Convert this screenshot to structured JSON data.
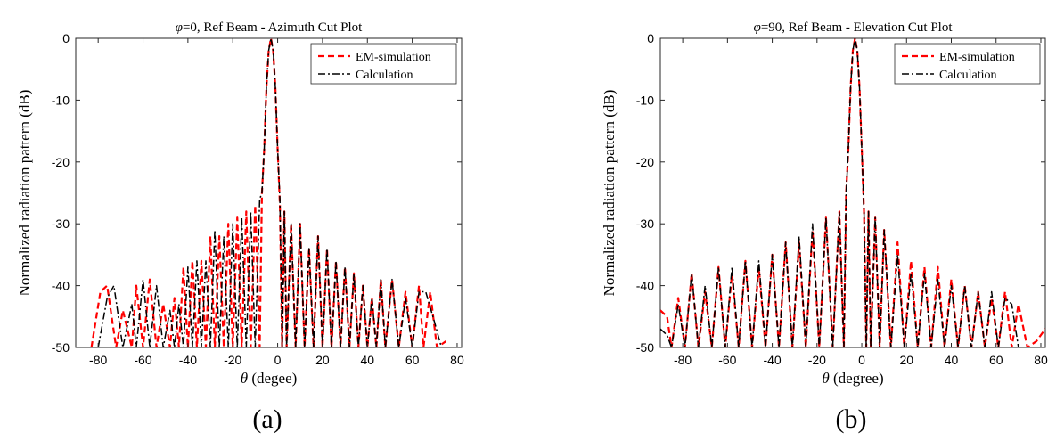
{
  "chart_data": [
    {
      "type": "line",
      "panel": "a",
      "title_symbol": "φ",
      "title_text": "=0, Ref Beam - Azimuth Cut Plot",
      "xlabel_symbol": "θ",
      "xlabel_text": " (degee)",
      "ylabel": "Normalized radiation pattern (dB)",
      "caption": "(a)",
      "xlim": [
        -90,
        82
      ],
      "ylim": [
        -50,
        0
      ],
      "xticks": [
        -80,
        -60,
        -40,
        -20,
        0,
        20,
        40,
        60,
        80
      ],
      "yticks": [
        0,
        -10,
        -20,
        -30,
        -40,
        -50
      ],
      "xtick_labels": [
        "-80",
        "-60",
        "-40",
        "-20",
        "0",
        "20",
        "40",
        "60",
        "80"
      ],
      "ytick_labels": [
        "0",
        "-10",
        "-20",
        "-30",
        "-40",
        "-50"
      ],
      "legend": [
        "EM-simulation",
        "Calculation"
      ],
      "series": [
        {
          "name": "EM-simulation",
          "color": "#ff0000",
          "style": "dashed",
          "x": [
            -83,
            -79,
            -76,
            -72,
            -69,
            -65,
            -63,
            -60,
            -57,
            -54,
            -51,
            -48,
            -46,
            -44,
            -42,
            -40,
            -38,
            -36,
            -34,
            -32,
            -30,
            -28,
            -26,
            -24,
            -22,
            -20,
            -18,
            -16,
            -14,
            -12,
            -10,
            -8,
            -7,
            -6,
            -5,
            -4,
            -3,
            -2,
            -1,
            0,
            1,
            2,
            3,
            4,
            6,
            8,
            10,
            12,
            14,
            16,
            18,
            20,
            22,
            24,
            26,
            28,
            30,
            32,
            34,
            36,
            38,
            40,
            42,
            44,
            46,
            48,
            51,
            54,
            57,
            60,
            63,
            65,
            68,
            71,
            75
          ],
          "y": [
            -50,
            -41,
            -40,
            -50,
            -44,
            -50,
            -40,
            -50,
            -39,
            -50,
            -43,
            -50,
            -42,
            -50,
            -37,
            -50,
            -36,
            -50,
            -36,
            -50,
            -32,
            -50,
            -32,
            -50,
            -30,
            -50,
            -29,
            -50,
            -28,
            -50,
            -27,
            -50,
            -25,
            -18,
            -8,
            -2,
            0,
            -2,
            -8,
            -18,
            -27,
            -50,
            -28,
            -50,
            -30,
            -50,
            -30,
            -50,
            -34,
            -50,
            -32,
            -50,
            -34,
            -50,
            -36,
            -50,
            -37,
            -50,
            -38,
            -50,
            -40,
            -50,
            -42,
            -50,
            -39,
            -50,
            -39,
            -50,
            -41,
            -50,
            -40,
            -50,
            -41,
            -50,
            -49
          ]
        },
        {
          "name": "Calculation",
          "color": "#000000",
          "style": "dashdot",
          "x": [
            -80,
            -76,
            -73,
            -69,
            -65,
            -63,
            -60,
            -57,
            -54,
            -51,
            -48,
            -46,
            -44,
            -42,
            -40,
            -38,
            -36,
            -34,
            -32,
            -30,
            -28,
            -26,
            -24,
            -22,
            -20,
            -18,
            -16,
            -14,
            -12,
            -10,
            -8,
            -7,
            -6,
            -5,
            -4,
            -3,
            -2,
            -1,
            0,
            1,
            2,
            3,
            4,
            6,
            8,
            10,
            12,
            14,
            16,
            18,
            20,
            22,
            24,
            26,
            28,
            30,
            32,
            34,
            36,
            38,
            40,
            42,
            44,
            46,
            48,
            51,
            54,
            57,
            60,
            63,
            66,
            70,
            73
          ],
          "y": [
            -50,
            -42,
            -40,
            -50,
            -43,
            -50,
            -39,
            -50,
            -40,
            -50,
            -44,
            -50,
            -43,
            -50,
            -37,
            -50,
            -36,
            -50,
            -36,
            -50,
            -31,
            -50,
            -32,
            -50,
            -30,
            -50,
            -29,
            -50,
            -28,
            -50,
            -26,
            -25,
            -18,
            -8,
            -2,
            0,
            -2,
            -8,
            -18,
            -26,
            -50,
            -28,
            -50,
            -30,
            -50,
            -30,
            -50,
            -34,
            -50,
            -32,
            -50,
            -34,
            -50,
            -36,
            -50,
            -37,
            -50,
            -38,
            -50,
            -40,
            -50,
            -42,
            -50,
            -39,
            -50,
            -39,
            -50,
            -42,
            -50,
            -41,
            -41,
            -46,
            -50
          ]
        }
      ]
    },
    {
      "type": "line",
      "panel": "b",
      "title_symbol": "φ",
      "title_text": "=90, Ref Beam - Elevation Cut Plot",
      "xlabel_symbol": "θ",
      "xlabel_text": " (degree)",
      "ylabel": "Normalized radiation pattern (dB)",
      "caption": "(b)",
      "xlim": [
        -90,
        82
      ],
      "ylim": [
        -50,
        0
      ],
      "xticks": [
        -80,
        -60,
        -40,
        -20,
        0,
        20,
        40,
        60,
        80
      ],
      "yticks": [
        0,
        -10,
        -20,
        -30,
        -40,
        -50
      ],
      "xtick_labels": [
        "-80",
        "-60",
        "-40",
        "-20",
        "0",
        "20",
        "40",
        "60",
        "80"
      ],
      "ytick_labels": [
        "0",
        "-10",
        "-20",
        "-30",
        "-40",
        "-50"
      ],
      "legend": [
        "EM-simulation",
        "Calculation"
      ],
      "series": [
        {
          "name": "EM-simulation",
          "color": "#ff0000",
          "style": "dashed",
          "x": [
            -90,
            -87,
            -85,
            -82,
            -79,
            -76,
            -73,
            -70,
            -67,
            -64,
            -61,
            -58,
            -55,
            -52,
            -49,
            -46,
            -43,
            -40,
            -37,
            -34,
            -31,
            -28,
            -25,
            -22,
            -19,
            -16,
            -13,
            -10,
            -8,
            -7,
            -6,
            -5,
            -4,
            -3,
            -2,
            -1,
            0,
            1,
            2,
            3,
            4,
            6,
            8,
            10,
            13,
            16,
            19,
            22,
            25,
            28,
            31,
            34,
            37,
            40,
            43,
            46,
            49,
            52,
            55,
            58,
            61,
            64,
            67,
            70,
            74,
            78,
            82
          ],
          "y": [
            -44,
            -45,
            -50,
            -42,
            -50,
            -38,
            -50,
            -41,
            -50,
            -37,
            -50,
            -38,
            -50,
            -36,
            -50,
            -37,
            -50,
            -35,
            -50,
            -33,
            -50,
            -33,
            -50,
            -31,
            -50,
            -29,
            -50,
            -28,
            -50,
            -25,
            -18,
            -8,
            -2,
            0,
            -2,
            -8,
            -18,
            -28,
            -50,
            -28,
            -50,
            -29,
            -50,
            -31,
            -50,
            -33,
            -50,
            -36,
            -50,
            -37,
            -50,
            -37,
            -50,
            -39,
            -50,
            -40,
            -50,
            -41,
            -50,
            -42,
            -50,
            -41,
            -50,
            -43,
            -50,
            -49,
            -47
          ]
        },
        {
          "name": "Calculation",
          "color": "#000000",
          "style": "dashdot",
          "x": [
            -90,
            -87,
            -85,
            -82,
            -79,
            -76,
            -73,
            -70,
            -67,
            -64,
            -61,
            -58,
            -55,
            -52,
            -49,
            -46,
            -43,
            -40,
            -37,
            -34,
            -31,
            -28,
            -25,
            -22,
            -19,
            -16,
            -13,
            -10,
            -8,
            -7,
            -6,
            -5,
            -4,
            -3,
            -2,
            -1,
            0,
            1,
            2,
            3,
            4,
            6,
            8,
            10,
            13,
            16,
            19,
            22,
            25,
            28,
            31,
            34,
            37,
            40,
            43,
            46,
            49,
            52,
            55,
            58,
            61,
            64,
            67,
            70
          ],
          "y": [
            -47,
            -48,
            -50,
            -43,
            -50,
            -38,
            -50,
            -40,
            -50,
            -37,
            -50,
            -37,
            -50,
            -36,
            -50,
            -36,
            -50,
            -35,
            -50,
            -33,
            -50,
            -32,
            -50,
            -30,
            -50,
            -29,
            -50,
            -28,
            -50,
            -25,
            -18,
            -8,
            -2,
            0,
            -2,
            -8,
            -18,
            -28,
            -50,
            -28,
            -50,
            -29,
            -50,
            -31,
            -50,
            -35,
            -50,
            -38,
            -50,
            -38,
            -50,
            -39,
            -50,
            -40,
            -50,
            -40,
            -50,
            -41,
            -50,
            -41,
            -50,
            -42,
            -43,
            -50
          ]
        }
      ]
    }
  ]
}
